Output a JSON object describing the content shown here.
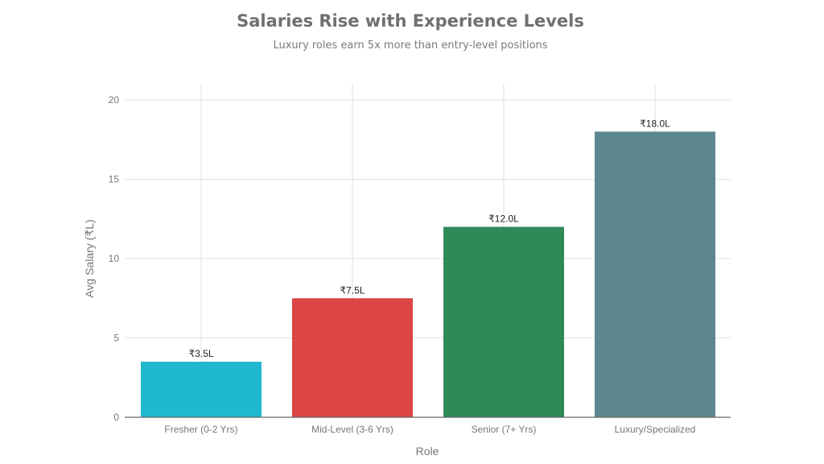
{
  "chart_data": {
    "type": "bar",
    "title": "Salaries Rise with Experience Levels",
    "subtitle": "Luxury roles earn 5x more than entry-level positions",
    "xlabel": "Role",
    "ylabel": "Avg Salary (₹L)",
    "categories": [
      "Fresher (0-2 Yrs)",
      "Mid-Level (3-6 Yrs)",
      "Senior (7+ Yrs)",
      "Luxury/Specialized"
    ],
    "values": [
      3.5,
      7.5,
      12.0,
      18.0
    ],
    "data_labels": [
      "₹3.5L",
      "₹7.5L",
      "₹12.0L",
      "₹18.0L"
    ],
    "colors": [
      "#1fb8cd",
      "#db4545",
      "#2e8b57",
      "#5d878f"
    ],
    "ylim": [
      0,
      21
    ],
    "yticks": [
      0,
      5,
      10,
      15,
      20
    ],
    "grid": true
  }
}
